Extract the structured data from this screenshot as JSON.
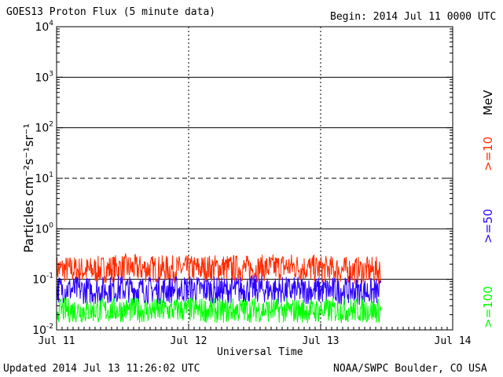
{
  "header": {
    "title": "GOES13 Proton Flux (5 minute data)",
    "begin": "Begin: 2014 Jul 11 0000 UTC"
  },
  "footer": {
    "updated": "Updated 2014 Jul 13 11:26:02 UTC",
    "source": "NOAA/SWPC Boulder, CO USA"
  },
  "chart_data": {
    "type": "line",
    "title": "GOES13 Proton Flux (5 minute data)",
    "xlabel": "Universal Time",
    "ylabel": "Particles cm⁻²s⁻¹sr⁻¹",
    "y_scale": "log",
    "ylim": [
      0.01,
      10000
    ],
    "y_ticks": [
      {
        "value": 0.01,
        "base": "10",
        "exp": "-2"
      },
      {
        "value": 0.1,
        "base": "10",
        "exp": "-1"
      },
      {
        "value": 1,
        "base": "10",
        "exp": "0"
      },
      {
        "value": 10,
        "base": "10",
        "exp": "1"
      },
      {
        "value": 100,
        "base": "10",
        "exp": "2"
      },
      {
        "value": 1000,
        "base": "10",
        "exp": "3"
      },
      {
        "value": 10000,
        "base": "10",
        "exp": "4"
      }
    ],
    "x_ticks": [
      "Jul 11",
      "Jul 12",
      "Jul 13",
      "Jul 14"
    ],
    "threshold_lines": [
      {
        "value": 1,
        "style": "solid"
      },
      {
        "value": 10,
        "style": "dashed"
      },
      {
        "value": 100,
        "style": "solid"
      },
      {
        "value": 1000,
        "style": "solid"
      },
      {
        "value": 0.1,
        "style": "solid"
      }
    ],
    "energy_unit": "MeV",
    "series": [
      {
        "name": ">=10",
        "color": "#ff2a00",
        "x": [
          "2014-07-11 00:00",
          "2014-07-11 06:00",
          "2014-07-11 12:00",
          "2014-07-11 18:00",
          "2014-07-12 00:00",
          "2014-07-12 06:00",
          "2014-07-12 12:00",
          "2014-07-12 18:00",
          "2014-07-13 00:00",
          "2014-07-13 06:00",
          "2014-07-13 11:00"
        ],
        "values": [
          0.16,
          0.15,
          0.17,
          0.16,
          0.16,
          0.17,
          0.16,
          0.18,
          0.16,
          0.15,
          0.15
        ]
      },
      {
        "name": ">=50",
        "color": "#2a00ff",
        "x": [
          "2014-07-11 00:00",
          "2014-07-11 06:00",
          "2014-07-11 12:00",
          "2014-07-11 18:00",
          "2014-07-12 00:00",
          "2014-07-12 06:00",
          "2014-07-12 12:00",
          "2014-07-12 18:00",
          "2014-07-13 00:00",
          "2014-07-13 06:00",
          "2014-07-13 11:00"
        ],
        "values": [
          0.065,
          0.06,
          0.065,
          0.06,
          0.065,
          0.06,
          0.065,
          0.06,
          0.06,
          0.06,
          0.055
        ]
      },
      {
        "name": ">=100",
        "color": "#00ff00",
        "x": [
          "2014-07-11 00:00",
          "2014-07-11 06:00",
          "2014-07-11 12:00",
          "2014-07-11 18:00",
          "2014-07-12 00:00",
          "2014-07-12 06:00",
          "2014-07-12 12:00",
          "2014-07-12 18:00",
          "2014-07-13 00:00",
          "2014-07-13 06:00",
          "2014-07-13 11:00"
        ],
        "values": [
          0.025,
          0.024,
          0.025,
          0.024,
          0.025,
          0.024,
          0.025,
          0.024,
          0.024,
          0.025,
          0.024
        ]
      }
    ]
  }
}
